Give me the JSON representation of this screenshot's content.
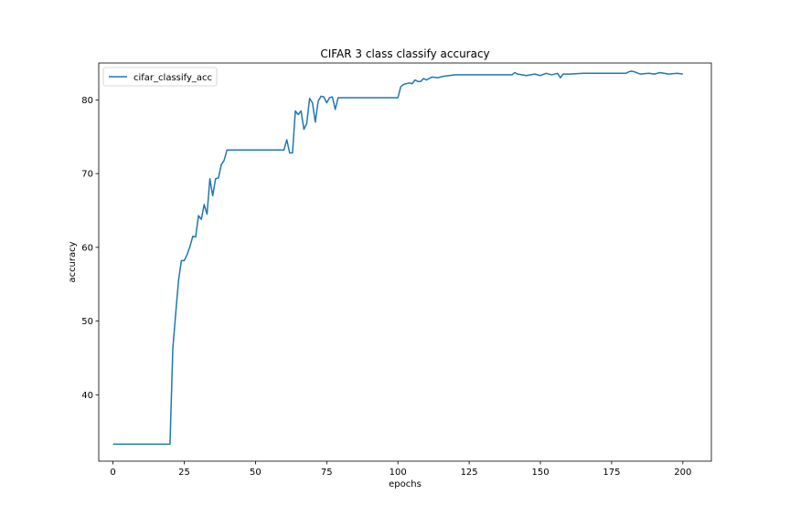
{
  "chart_data": {
    "type": "line",
    "title": "CIFAR 3 class classify accuracy",
    "xlabel": "epochs",
    "ylabel": "accuracy",
    "xlim": [
      -5,
      210
    ],
    "ylim": [
      31,
      85
    ],
    "xticks": [
      0,
      25,
      50,
      75,
      100,
      125,
      150,
      175,
      200
    ],
    "yticks": [
      40,
      50,
      60,
      70,
      80
    ],
    "grid": false,
    "legend_position": "top-left",
    "series": [
      {
        "name": "cifar_classify_acc",
        "color": "#1f77b4",
        "x": [
          0,
          5,
          10,
          15,
          20,
          21,
          22,
          23,
          24,
          25,
          26,
          27,
          28,
          29,
          30,
          31,
          32,
          33,
          34,
          35,
          36,
          37,
          38,
          39,
          40,
          45,
          50,
          55,
          60,
          61,
          62,
          63,
          64,
          65,
          66,
          67,
          68,
          69,
          70,
          71,
          72,
          73,
          74,
          75,
          76,
          77,
          78,
          79,
          80,
          85,
          90,
          95,
          100,
          101,
          102,
          104,
          105,
          106,
          107,
          108,
          109,
          110,
          112,
          114,
          116,
          118,
          120,
          125,
          130,
          135,
          140,
          141,
          142,
          145,
          148,
          150,
          152,
          154,
          156,
          157,
          158,
          160,
          165,
          170,
          175,
          180,
          181,
          182,
          183,
          185,
          188,
          190,
          192,
          195,
          198,
          200
        ],
        "y": [
          33.3,
          33.3,
          33.3,
          33.3,
          33.3,
          46.3,
          51.0,
          55.5,
          58.2,
          58.2,
          59.0,
          60.1,
          61.5,
          61.4,
          64.3,
          63.8,
          65.8,
          64.5,
          69.3,
          67.0,
          69.3,
          69.4,
          71.2,
          71.8,
          73.2,
          73.2,
          73.2,
          73.2,
          73.2,
          74.6,
          72.8,
          72.8,
          78.5,
          78.0,
          78.5,
          76.0,
          76.8,
          80.2,
          79.6,
          77.0,
          79.8,
          80.5,
          80.4,
          79.6,
          80.3,
          80.4,
          78.7,
          80.3,
          80.3,
          80.3,
          80.3,
          80.3,
          80.3,
          81.8,
          82.1,
          82.3,
          82.2,
          82.7,
          82.5,
          82.5,
          82.9,
          82.7,
          83.1,
          83.0,
          83.2,
          83.3,
          83.4,
          83.4,
          83.4,
          83.4,
          83.4,
          83.7,
          83.5,
          83.3,
          83.5,
          83.3,
          83.6,
          83.4,
          83.6,
          83.0,
          83.5,
          83.5,
          83.6,
          83.6,
          83.6,
          83.6,
          83.8,
          83.9,
          83.8,
          83.5,
          83.6,
          83.5,
          83.7,
          83.5,
          83.6,
          83.5
        ]
      }
    ]
  }
}
